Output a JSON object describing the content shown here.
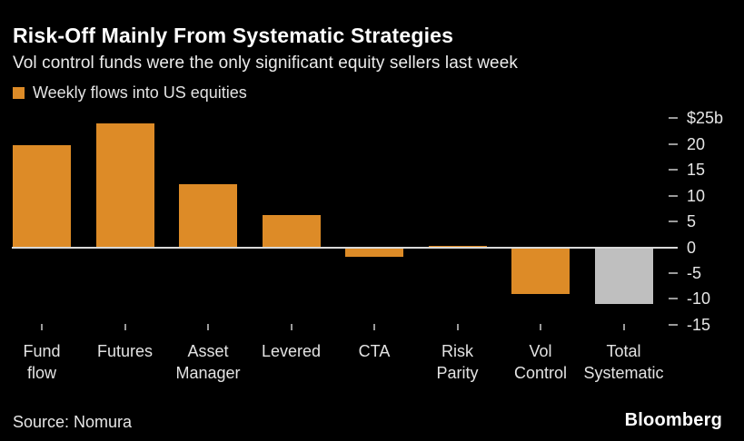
{
  "header": {
    "title": "Risk-Off Mainly From Systematic Strategies",
    "subtitle": "Vol control funds were the only significant equity sellers last week"
  },
  "legend": {
    "label": "Weekly flows into US equities",
    "swatch_color": "#dd8b27"
  },
  "footer": {
    "source": "Source: Nomura",
    "brand": "Bloomberg"
  },
  "colors": {
    "background": "#000000",
    "bar_orange": "#dd8b27",
    "bar_gray": "#bfbfbf",
    "zero_line": "#d9d9d9",
    "tick": "#9a9a9a",
    "axis_text": "#e6e6e6"
  },
  "chart_data": {
    "type": "bar",
    "title": "Weekly flows into US equities",
    "unit": "billions USD",
    "categories": [
      "Fund flow",
      "Futures",
      "Asset Manager",
      "Levered",
      "CTA",
      "Risk Parity",
      "Vol Control",
      "Total Systematic"
    ],
    "category_lines": [
      [
        "Fund",
        "flow"
      ],
      [
        "Futures"
      ],
      [
        "Asset",
        "Manager"
      ],
      [
        "Levered"
      ],
      [
        "CTA"
      ],
      [
        "Risk",
        "Parity"
      ],
      [
        "Vol",
        "Control"
      ],
      [
        "Total",
        "Systematic"
      ]
    ],
    "values": [
      19.7,
      24.0,
      12.3,
      6.3,
      -1.8,
      0.3,
      -9.0,
      -11.0
    ],
    "bar_colors": [
      "#dd8b27",
      "#dd8b27",
      "#dd8b27",
      "#dd8b27",
      "#dd8b27",
      "#dd8b27",
      "#dd8b27",
      "#bfbfbf"
    ],
    "ylim": [
      -15,
      25
    ],
    "yticks": [
      25,
      20,
      15,
      10,
      5,
      0,
      -5,
      -10,
      -15
    ],
    "ytick_labels": [
      "$25b",
      "20",
      "15",
      "10",
      "5",
      "0",
      "-5",
      "-10",
      "-15"
    ],
    "grid": false,
    "axis_side": "right",
    "legend_position": "top-left"
  }
}
